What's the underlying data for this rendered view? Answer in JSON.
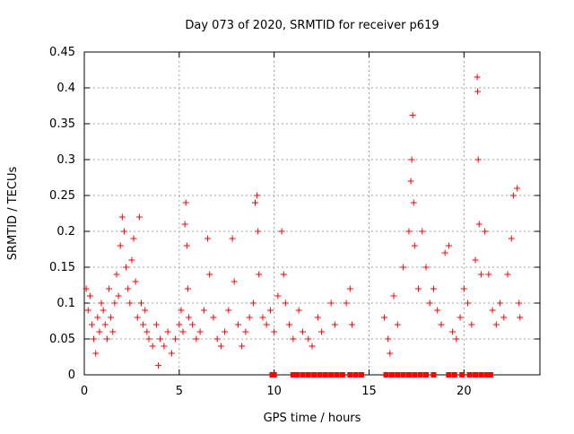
{
  "chart_data": {
    "type": "scatter",
    "title": "Day 073 of 2020, SRMTID for receiver p619",
    "xlabel": "GPS time / hours",
    "ylabel": "SRMTID / TECUs",
    "xlim": [
      0,
      24
    ],
    "ylim": [
      0,
      0.45
    ],
    "grid": true,
    "marker": "+",
    "marker_color": "#ff0000",
    "x_ticks": [
      "0",
      "5",
      "10",
      "15",
      "20"
    ],
    "y_ticks": [
      "0",
      "0.05",
      "0.1",
      "0.15",
      "0.2",
      "0.25",
      "0.3",
      "0.35",
      "0.4",
      "0.45"
    ],
    "x_tick_values": [
      0,
      5,
      10,
      15,
      20
    ],
    "y_tick_values": [
      0,
      0.05,
      0.1,
      0.15,
      0.2,
      0.25,
      0.3,
      0.35,
      0.4,
      0.45
    ],
    "series": [
      {
        "name": "SRMTID",
        "points": [
          [
            0.1,
            0.12
          ],
          [
            0.2,
            0.09
          ],
          [
            0.3,
            0.11
          ],
          [
            0.4,
            0.07
          ],
          [
            0.5,
            0.05
          ],
          [
            0.6,
            0.03
          ],
          [
            0.7,
            0.08
          ],
          [
            0.8,
            0.06
          ],
          [
            0.9,
            0.1
          ],
          [
            1.0,
            0.09
          ],
          [
            1.1,
            0.07
          ],
          [
            1.2,
            0.05
          ],
          [
            1.3,
            0.12
          ],
          [
            1.4,
            0.08
          ],
          [
            1.5,
            0.06
          ],
          [
            1.6,
            0.1
          ],
          [
            1.7,
            0.14
          ],
          [
            1.8,
            0.11
          ],
          [
            1.9,
            0.18
          ],
          [
            2.0,
            0.22
          ],
          [
            2.1,
            0.2
          ],
          [
            2.2,
            0.15
          ],
          [
            2.3,
            0.12
          ],
          [
            2.4,
            0.1
          ],
          [
            2.5,
            0.16
          ],
          [
            2.6,
            0.19
          ],
          [
            2.7,
            0.13
          ],
          [
            2.8,
            0.08
          ],
          [
            2.9,
            0.22
          ],
          [
            3.0,
            0.1
          ],
          [
            3.1,
            0.07
          ],
          [
            3.2,
            0.09
          ],
          [
            3.3,
            0.06
          ],
          [
            3.4,
            0.05
          ],
          [
            3.6,
            0.04
          ],
          [
            3.8,
            0.07
          ],
          [
            3.9,
            0.013
          ],
          [
            4.0,
            0.05
          ],
          [
            4.2,
            0.04
          ],
          [
            4.4,
            0.06
          ],
          [
            4.6,
            0.03
          ],
          [
            4.8,
            0.05
          ],
          [
            5.0,
            0.07
          ],
          [
            5.1,
            0.09
          ],
          [
            5.2,
            0.06
          ],
          [
            5.3,
            0.21
          ],
          [
            5.35,
            0.24
          ],
          [
            5.4,
            0.18
          ],
          [
            5.45,
            0.12
          ],
          [
            5.5,
            0.08
          ],
          [
            5.7,
            0.07
          ],
          [
            5.9,
            0.05
          ],
          [
            6.1,
            0.06
          ],
          [
            6.3,
            0.09
          ],
          [
            6.5,
            0.19
          ],
          [
            6.6,
            0.14
          ],
          [
            6.8,
            0.08
          ],
          [
            7.0,
            0.05
          ],
          [
            7.2,
            0.04
          ],
          [
            7.4,
            0.06
          ],
          [
            7.6,
            0.09
          ],
          [
            7.8,
            0.19
          ],
          [
            7.9,
            0.13
          ],
          [
            8.1,
            0.07
          ],
          [
            8.3,
            0.04
          ],
          [
            8.5,
            0.06
          ],
          [
            8.7,
            0.08
          ],
          [
            8.9,
            0.1
          ],
          [
            9.0,
            0.24
          ],
          [
            9.1,
            0.25
          ],
          [
            9.15,
            0.2
          ],
          [
            9.2,
            0.14
          ],
          [
            9.4,
            0.08
          ],
          [
            9.6,
            0.07
          ],
          [
            9.8,
            0.09
          ],
          [
            10.0,
            0.06
          ],
          [
            10.2,
            0.11
          ],
          [
            10.4,
            0.2
          ],
          [
            10.5,
            0.14
          ],
          [
            10.6,
            0.1
          ],
          [
            10.8,
            0.07
          ],
          [
            11.0,
            0.05
          ],
          [
            11.3,
            0.09
          ],
          [
            11.5,
            0.06
          ],
          [
            11.8,
            0.05
          ],
          [
            12.0,
            0.04
          ],
          [
            12.3,
            0.08
          ],
          [
            12.5,
            0.06
          ],
          [
            13.0,
            0.1
          ],
          [
            13.2,
            0.07
          ],
          [
            13.8,
            0.1
          ],
          [
            14.0,
            0.12
          ],
          [
            14.1,
            0.07
          ],
          [
            15.8,
            0.08
          ],
          [
            16.0,
            0.05
          ],
          [
            16.1,
            0.03
          ],
          [
            16.3,
            0.11
          ],
          [
            16.5,
            0.07
          ],
          [
            16.8,
            0.15
          ],
          [
            17.1,
            0.2
          ],
          [
            17.2,
            0.27
          ],
          [
            17.25,
            0.3
          ],
          [
            17.3,
            0.362
          ],
          [
            17.35,
            0.24
          ],
          [
            17.4,
            0.18
          ],
          [
            17.6,
            0.12
          ],
          [
            17.8,
            0.2
          ],
          [
            18.0,
            0.15
          ],
          [
            18.2,
            0.1
          ],
          [
            18.4,
            0.12
          ],
          [
            18.6,
            0.09
          ],
          [
            18.8,
            0.07
          ],
          [
            19.0,
            0.17
          ],
          [
            19.2,
            0.18
          ],
          [
            19.4,
            0.06
          ],
          [
            19.6,
            0.05
          ],
          [
            19.8,
            0.08
          ],
          [
            20.0,
            0.12
          ],
          [
            20.2,
            0.1
          ],
          [
            20.4,
            0.07
          ],
          [
            20.6,
            0.16
          ],
          [
            20.7,
            0.415
          ],
          [
            20.72,
            0.395
          ],
          [
            20.75,
            0.3
          ],
          [
            20.8,
            0.21
          ],
          [
            20.9,
            0.14
          ],
          [
            21.1,
            0.2
          ],
          [
            21.3,
            0.14
          ],
          [
            21.5,
            0.09
          ],
          [
            21.7,
            0.07
          ],
          [
            21.9,
            0.1
          ],
          [
            22.1,
            0.08
          ],
          [
            22.3,
            0.14
          ],
          [
            22.5,
            0.19
          ],
          [
            22.6,
            0.25
          ],
          [
            22.8,
            0.26
          ],
          [
            22.9,
            0.1
          ],
          [
            22.95,
            0.08
          ]
        ]
      },
      {
        "name": "zero-value markers",
        "marker": "square",
        "points": [
          [
            9.9,
            0
          ],
          [
            10.0,
            0
          ],
          [
            11.0,
            0
          ],
          [
            11.2,
            0
          ],
          [
            11.5,
            0
          ],
          [
            11.8,
            0
          ],
          [
            12.1,
            0
          ],
          [
            12.4,
            0
          ],
          [
            12.7,
            0
          ],
          [
            13.0,
            0
          ],
          [
            13.3,
            0
          ],
          [
            13.6,
            0
          ],
          [
            14.0,
            0
          ],
          [
            14.3,
            0
          ],
          [
            14.6,
            0
          ],
          [
            15.9,
            0
          ],
          [
            16.2,
            0
          ],
          [
            16.5,
            0
          ],
          [
            16.8,
            0
          ],
          [
            17.1,
            0
          ],
          [
            17.4,
            0
          ],
          [
            17.7,
            0
          ],
          [
            18.0,
            0
          ],
          [
            18.4,
            0
          ],
          [
            19.2,
            0
          ],
          [
            19.5,
            0
          ],
          [
            19.9,
            0
          ],
          [
            20.3,
            0
          ],
          [
            20.6,
            0
          ],
          [
            20.9,
            0
          ],
          [
            21.2,
            0
          ],
          [
            21.4,
            0
          ]
        ]
      }
    ]
  }
}
